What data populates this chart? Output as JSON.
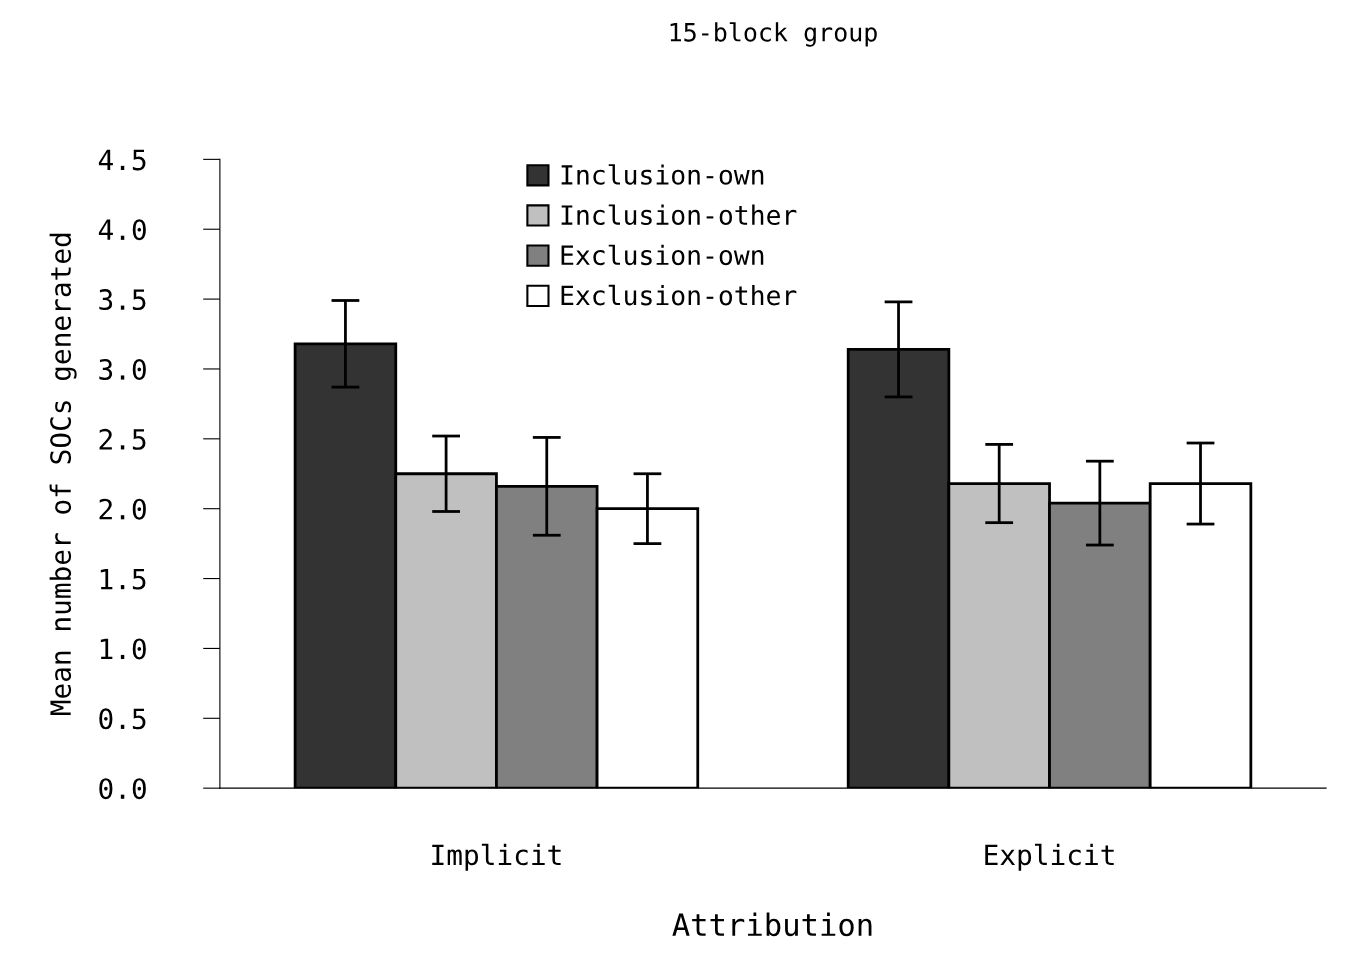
{
  "chart_data": {
    "type": "bar",
    "title": "15-block group",
    "xlabel": "Attribution",
    "ylabel": "Mean number of SOCs generated",
    "categories": [
      "Implicit",
      "Explicit"
    ],
    "series": [
      {
        "name": "Inclusion-own",
        "color": "#333333",
        "values": [
          3.18,
          3.14
        ],
        "errors": [
          0.31,
          0.34
        ]
      },
      {
        "name": "Inclusion-other",
        "color": "#c0c0c0",
        "values": [
          2.25,
          2.18
        ],
        "errors": [
          0.27,
          0.28
        ]
      },
      {
        "name": "Exclusion-own",
        "color": "#808080",
        "values": [
          2.16,
          2.04
        ],
        "errors": [
          0.35,
          0.3
        ]
      },
      {
        "name": "Exclusion-other",
        "color": "#ffffff",
        "values": [
          2.0,
          2.18
        ],
        "errors": [
          0.25,
          0.29
        ]
      }
    ],
    "ylim": [
      0,
      4.5
    ],
    "yticks": [
      {
        "value": 0,
        "label": "0.0"
      },
      0.5,
      {
        "value": 1,
        "label": "1.0"
      },
      1.5,
      {
        "value": 2,
        "label": "2.0"
      },
      2.5,
      {
        "value": 3,
        "label": "3.0"
      },
      3.5,
      {
        "value": 4,
        "label": "4.0"
      },
      4.5
    ],
    "grid": false,
    "legend": "top"
  }
}
